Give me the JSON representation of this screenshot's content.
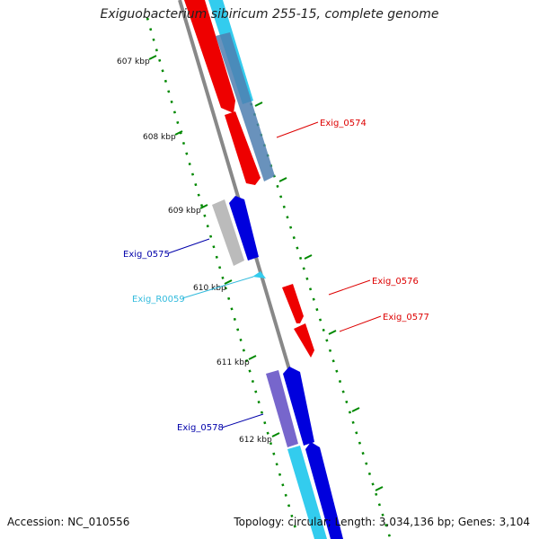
{
  "title": "Exiguobacterium sibiricum 255-15, complete genome",
  "footer": {
    "accession": "Accession: NC_010556",
    "summary": "Topology: circular; Length: 3,034,136 bp; Genes: 3,104"
  },
  "ruler_labels": [
    "607 kbp",
    "608 kbp",
    "609 kbp",
    "610 kbp",
    "611 kbp",
    "612 kbp"
  ],
  "gene_labels": [
    {
      "text": "Exig_0574",
      "color": "#dd0000"
    },
    {
      "text": "Exig_0575",
      "color": "#0000aa"
    },
    {
      "text": "Exig_R0059",
      "color": "#33bbdd"
    },
    {
      "text": "Exig_0576",
      "color": "#dd0000"
    },
    {
      "text": "Exig_0577",
      "color": "#dd0000"
    },
    {
      "text": "Exig_0578",
      "color": "#0000aa"
    }
  ],
  "colors": {
    "backbone": "#888888",
    "tick": "#008800",
    "red_gene": "#ee0000",
    "blue_gene": "#0000dd",
    "cyan_gene": "#33ccee",
    "steel_gene": "#4f7fb0",
    "gray_gene": "#bbbbbb",
    "purple_gene": "#7766cc"
  }
}
